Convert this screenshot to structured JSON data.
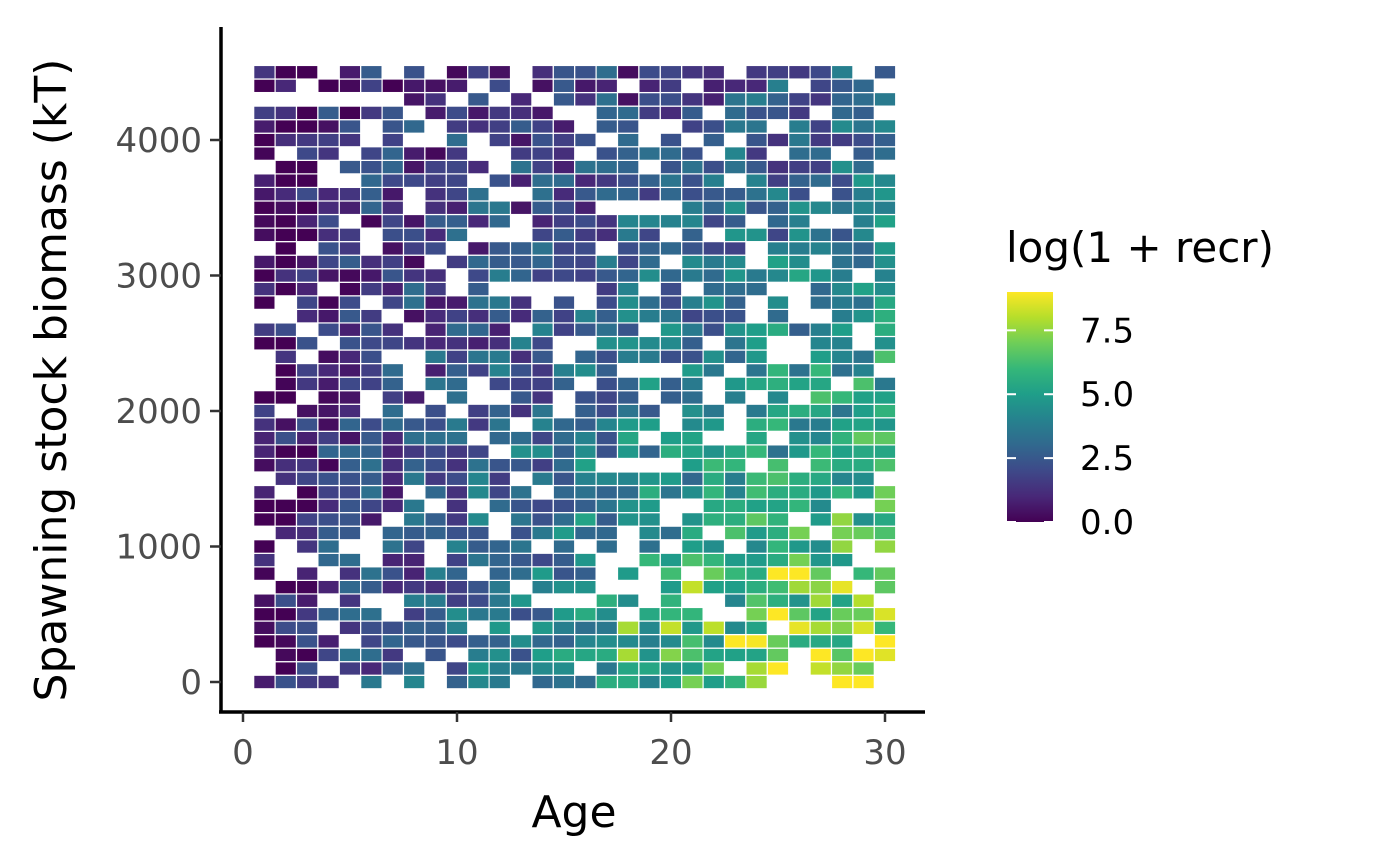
{
  "chart_data": {
    "type": "heatmap",
    "xlabel": "Age",
    "ylabel": "Spawning stock biomass (kT)",
    "xlim": [
      -1,
      32
    ],
    "ylim": [
      -200,
      4800
    ],
    "x_ticks": [
      0,
      10,
      20,
      30
    ],
    "y_ticks": [
      0,
      1000,
      2000,
      3000,
      4000
    ],
    "x_tick_labels": [
      "0",
      "10",
      "20",
      "30"
    ],
    "y_tick_labels": [
      "0",
      "1000",
      "2000",
      "3000",
      "4000"
    ],
    "tile_x_ages": [
      1,
      2,
      3,
      4,
      5,
      6,
      7,
      8,
      9,
      10,
      11,
      12,
      13,
      14,
      15,
      16,
      17,
      18,
      19,
      20,
      21,
      22,
      23,
      24,
      25,
      26,
      27,
      28,
      29,
      30
    ],
    "tile_y_biomass": [
      0,
      100,
      200,
      300,
      400,
      500,
      600,
      700,
      800,
      900,
      1000,
      1100,
      1200,
      1300,
      1400,
      1500,
      1600,
      1700,
      1800,
      1900,
      2000,
      2100,
      2200,
      2300,
      2400,
      2500,
      2600,
      2700,
      2800,
      2900,
      3000,
      3100,
      3200,
      3300,
      3400,
      3500,
      3600,
      3700,
      3800,
      3900,
      4000,
      4100,
      4200,
      4300,
      4400,
      4500
    ],
    "grid": false,
    "legend": {
      "title": "log(1 + recr)",
      "position": "right",
      "ticks": [
        0.0,
        2.5,
        5.0,
        7.5
      ],
      "tick_labels": [
        "0.0",
        "2.5",
        "5.0",
        "7.5"
      ],
      "range": [
        0,
        9
      ],
      "palette": "viridis",
      "colors": [
        "#440154",
        "#482878",
        "#3e4989",
        "#31688e",
        "#26828e",
        "#1f9e89",
        "#35b779",
        "#6ece58",
        "#b5de2b",
        "#fde725"
      ]
    },
    "tiles": []
  }
}
